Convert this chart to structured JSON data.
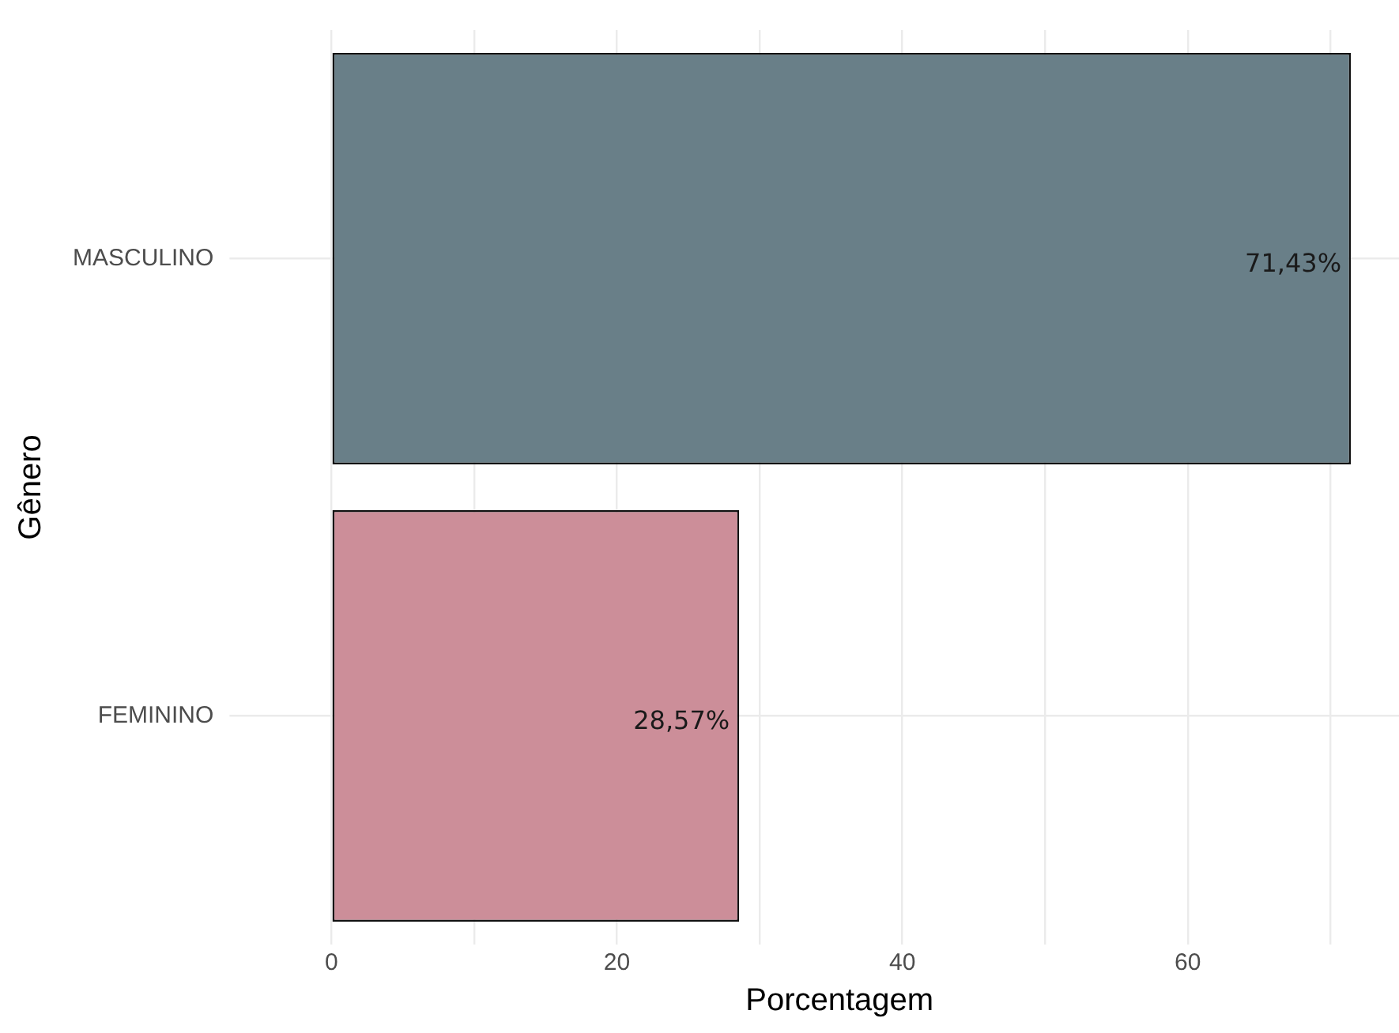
{
  "chart_data": {
    "type": "bar",
    "orientation": "horizontal",
    "xlabel": "Porcentagem",
    "ylabel": "Gênero",
    "categories": [
      "MASCULINO",
      "FEMININO"
    ],
    "values": [
      71.43,
      28.57
    ],
    "colors": [
      "#697f88",
      "#cc8e99"
    ],
    "value_labels": [
      "71,43%",
      "28,57%"
    ],
    "xlim": [
      -3.6,
      74.8
    ],
    "xticks": [
      0,
      {
        "value": 10,
        "label": null
      },
      20,
      {
        "value": 30,
        "label": null
      },
      40,
      {
        "value": 50,
        "label": null
      },
      60,
      {
        "value": 70,
        "label": null
      }
    ],
    "grid": true,
    "legend": false
  }
}
